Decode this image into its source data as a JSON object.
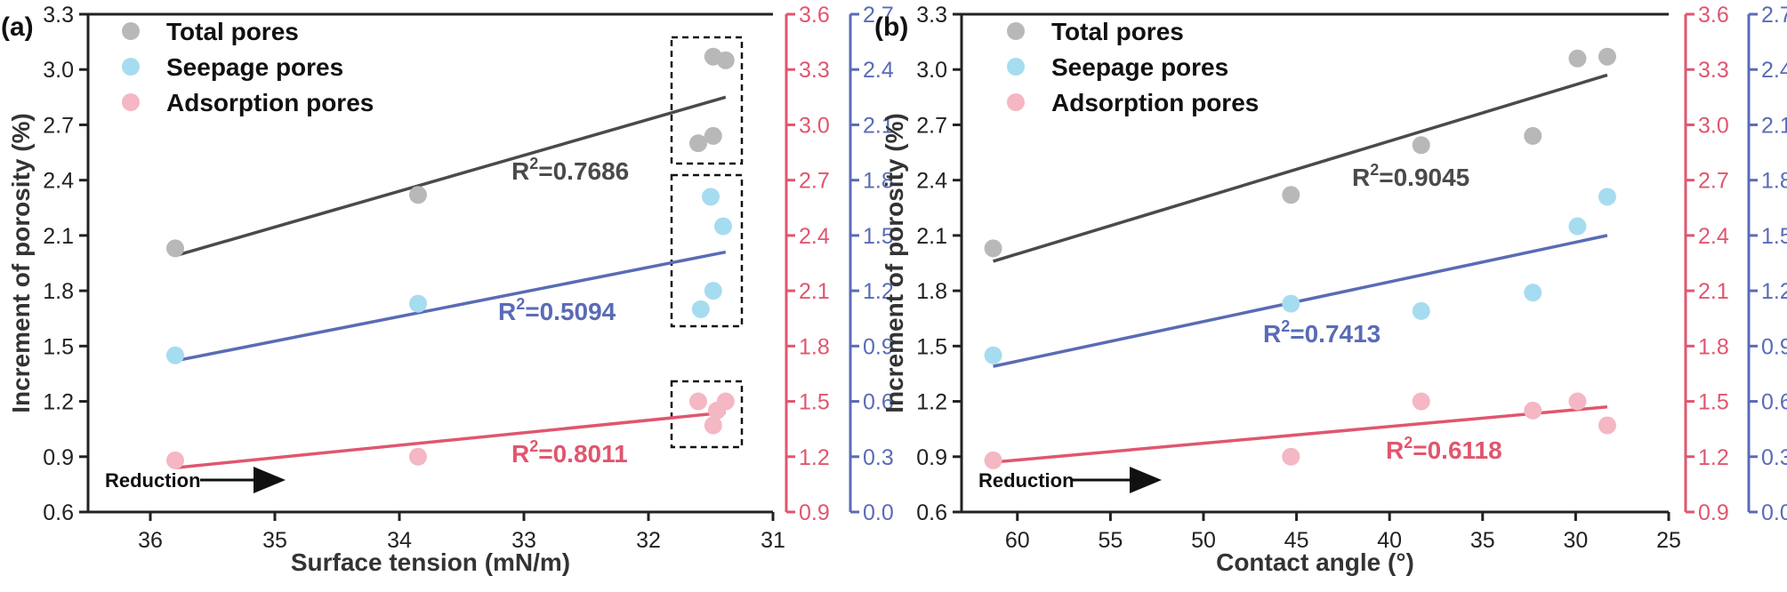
{
  "colors": {
    "total": "#4a4a4a",
    "total_marker": "#b8b8b8",
    "seepage": "#5a6bb5",
    "seepage_marker": "#a6dcf0",
    "adsorption": "#e0566e",
    "adsorption_marker": "#f4b7c3",
    "axis": "#222222"
  },
  "chart_data": [
    {
      "type": "scatter",
      "panel_label": "(a)",
      "xlabel": "Surface tension (mN/m)",
      "ylabel": "Increment of porosity (%)",
      "xlim": [
        36.5,
        31
      ],
      "x_ticks": [
        "36",
        "35",
        "34",
        "33",
        "32",
        "31"
      ],
      "ylim_left": [
        0.6,
        3.3
      ],
      "y_ticks_left": [
        "0.6",
        "0.9",
        "1.2",
        "1.5",
        "1.8",
        "2.1",
        "2.4",
        "2.7",
        "3.0",
        "3.3"
      ],
      "ylim_right_red": [
        0.9,
        3.6
      ],
      "y_ticks_right_red": [
        "0.9",
        "1.2",
        "1.5",
        "1.8",
        "2.1",
        "2.4",
        "2.7",
        "3.0",
        "3.3",
        "3.6"
      ],
      "ylim_right_blue": [
        0.0,
        2.7
      ],
      "y_ticks_right_blue": [
        "0.0",
        "0.3",
        "0.6",
        "0.9",
        "1.2",
        "1.5",
        "1.8",
        "2.1",
        "2.4",
        "2.7"
      ],
      "legend": [
        "Total pores",
        "Seepage pores",
        "Adsorption pores"
      ],
      "series": [
        {
          "key": "total",
          "axis": "left",
          "points": [
            [
              35.8,
              2.03
            ],
            [
              33.85,
              2.32
            ],
            [
              31.6,
              2.6
            ],
            [
              31.48,
              2.64
            ],
            [
              31.48,
              3.07
            ],
            [
              31.38,
              3.05
            ]
          ],
          "fit": [
            [
              35.8,
              1.99
            ],
            [
              31.38,
              2.85
            ]
          ],
          "r2": "0.7686"
        },
        {
          "key": "seepage",
          "axis": "right_blue",
          "points": [
            [
              35.8,
              0.85
            ],
            [
              33.85,
              1.13
            ],
            [
              31.58,
              1.1
            ],
            [
              31.48,
              1.2
            ],
            [
              31.5,
              1.71
            ],
            [
              31.4,
              1.55
            ]
          ],
          "fit": [
            [
              35.8,
              0.82
            ],
            [
              31.38,
              1.41
            ]
          ],
          "r2": "0.5094"
        },
        {
          "key": "adsorption",
          "axis": "right_red",
          "points": [
            [
              35.8,
              1.18
            ],
            [
              33.85,
              1.2
            ],
            [
              31.6,
              1.5
            ],
            [
              31.48,
              1.37
            ],
            [
              31.45,
              1.45
            ],
            [
              31.38,
              1.5
            ]
          ],
          "fit": [
            [
              35.8,
              1.14
            ],
            [
              31.38,
              1.44
            ]
          ],
          "r2": "0.8011"
        }
      ],
      "annotation": "Reduction"
    },
    {
      "type": "scatter",
      "panel_label": "(b)",
      "xlabel": "Contact angle (°)",
      "ylabel": "Increment of porosity (%)",
      "xlim": [
        63,
        25
      ],
      "x_ticks": [
        "60",
        "55",
        "50",
        "45",
        "40",
        "35",
        "30",
        "25"
      ],
      "ylim_left": [
        0.6,
        3.3
      ],
      "y_ticks_left": [
        "0.6",
        "0.9",
        "1.2",
        "1.5",
        "1.8",
        "2.1",
        "2.4",
        "2.7",
        "3.0",
        "3.3"
      ],
      "ylim_right_red": [
        0.9,
        3.6
      ],
      "y_ticks_right_red": [
        "0.9",
        "1.2",
        "1.5",
        "1.8",
        "2.1",
        "2.4",
        "2.7",
        "3.0",
        "3.3",
        "3.6"
      ],
      "ylim_right_blue": [
        0.0,
        2.7
      ],
      "y_ticks_right_blue": [
        "0.0",
        "0.3",
        "0.6",
        "0.9",
        "1.2",
        "1.5",
        "1.8",
        "2.1",
        "2.4",
        "2.7"
      ],
      "legend": [
        "Total pores",
        "Seepage pores",
        "Adsorption pores"
      ],
      "series": [
        {
          "key": "total",
          "axis": "left",
          "points": [
            [
              61.3,
              2.03
            ],
            [
              45.3,
              2.32
            ],
            [
              38.3,
              2.59
            ],
            [
              32.3,
              2.64
            ],
            [
              29.9,
              3.06
            ],
            [
              28.3,
              3.07
            ]
          ],
          "fit": [
            [
              61.3,
              1.96
            ],
            [
              28.3,
              2.97
            ]
          ],
          "r2": "0.9045"
        },
        {
          "key": "seepage",
          "axis": "right_blue",
          "points": [
            [
              61.3,
              0.85
            ],
            [
              45.3,
              1.13
            ],
            [
              38.3,
              1.09
            ],
            [
              32.3,
              1.19
            ],
            [
              29.9,
              1.55
            ],
            [
              28.3,
              1.71
            ]
          ],
          "fit": [
            [
              61.3,
              0.79
            ],
            [
              28.3,
              1.5
            ]
          ],
          "r2": "0.7413"
        },
        {
          "key": "adsorption",
          "axis": "right_red",
          "points": [
            [
              61.3,
              1.18
            ],
            [
              45.3,
              1.2
            ],
            [
              38.3,
              1.5
            ],
            [
              32.3,
              1.45
            ],
            [
              29.9,
              1.5
            ],
            [
              28.3,
              1.37
            ]
          ],
          "fit": [
            [
              61.3,
              1.17
            ],
            [
              28.3,
              1.47
            ]
          ],
          "r2": "0.6118"
        }
      ],
      "annotation": "Reduction"
    }
  ]
}
